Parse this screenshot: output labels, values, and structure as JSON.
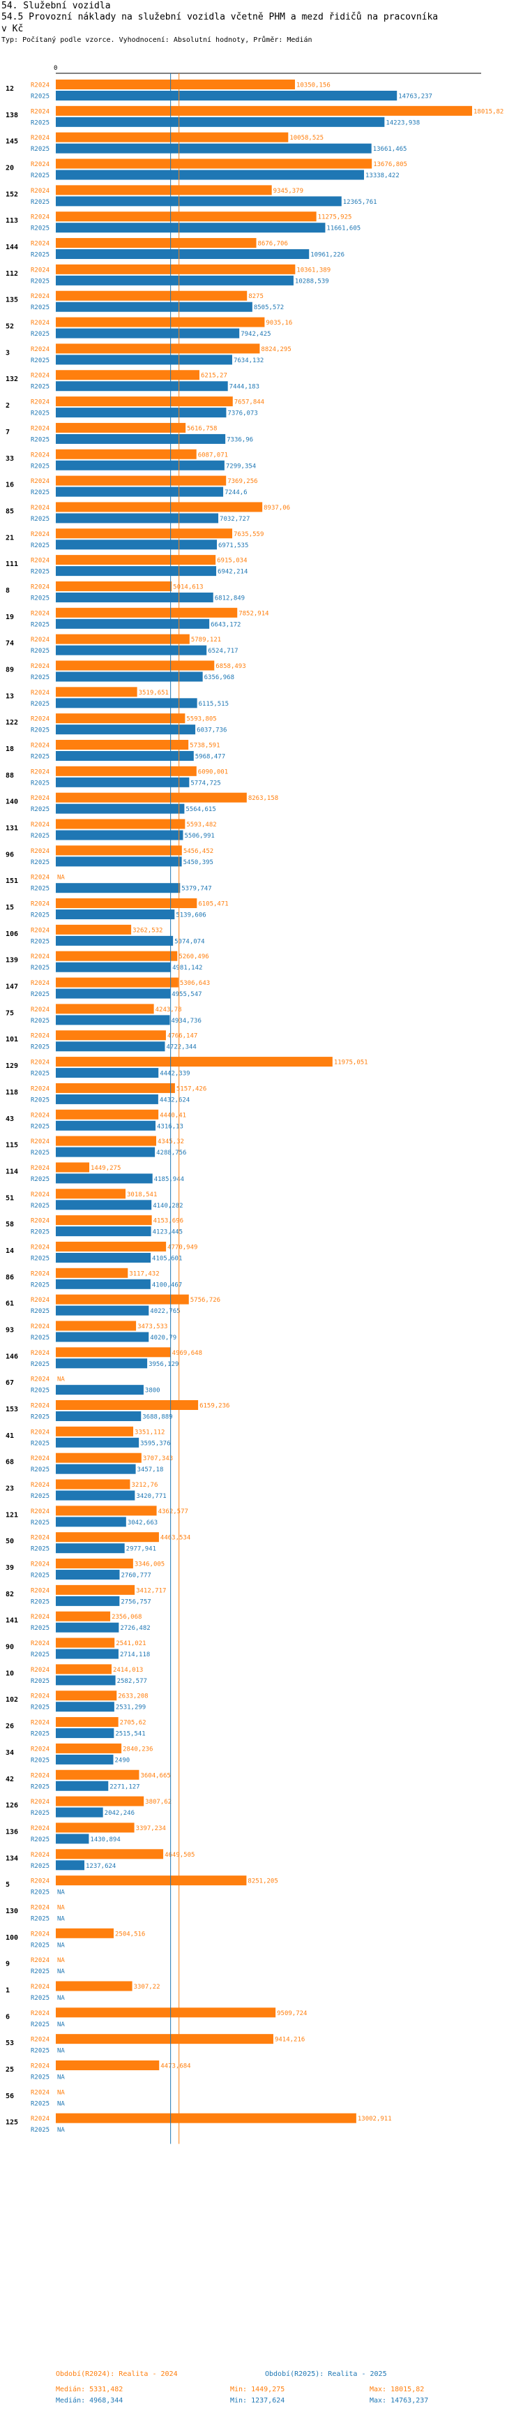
{
  "header": {
    "title_line1": "54. Služební vozidla",
    "title_line2": "54.5 Provozní náklady na služební vozidla včetně PHM a mezd řidičů na pracovníka",
    "title_line3": "v Kč",
    "subtitle": "Typ: Počítaný podle vzorce. Vyhodnocení: Absolutní hodnoty, Průměr: Medián"
  },
  "colors": {
    "r2024": "#ff7f0e",
    "r2025": "#1f77b4",
    "median2024": "#ff7f0e",
    "median2025": "#1f77b4"
  },
  "chart_data": {
    "type": "bar",
    "orientation": "horizontal",
    "axis_zero_label": "0",
    "x_range": [
      0,
      18500
    ],
    "series_names": [
      "R2024",
      "R2025"
    ],
    "missing_label": "NA",
    "groups": [
      {
        "id": "12",
        "r2024": 10350.156,
        "r2025": 14763.237,
        "l2024": "10350,156",
        "l2025": "14763,237"
      },
      {
        "id": "138",
        "r2024": 18015.82,
        "r2025": 14223.938,
        "l2024": "18015,82",
        "l2025": "14223,938"
      },
      {
        "id": "145",
        "r2024": 10058.525,
        "r2025": 13661.465,
        "l2024": "10058,525",
        "l2025": "13661,465"
      },
      {
        "id": "20",
        "r2024": 13676.805,
        "r2025": 13338.422,
        "l2024": "13676,805",
        "l2025": "13338,422"
      },
      {
        "id": "152",
        "r2024": 9345.379,
        "r2025": 12365.761,
        "l2024": "9345,379",
        "l2025": "12365,761"
      },
      {
        "id": "113",
        "r2024": 11275.925,
        "r2025": 11661.605,
        "l2024": "11275,925",
        "l2025": "11661,605"
      },
      {
        "id": "144",
        "r2024": 8676.706,
        "r2025": 10961.226,
        "l2024": "8676,706",
        "l2025": "10961,226"
      },
      {
        "id": "112",
        "r2024": 10361.389,
        "r2025": 10288.539,
        "l2024": "10361,389",
        "l2025": "10288,539"
      },
      {
        "id": "135",
        "r2024": 8275,
        "r2025": 8505.572,
        "l2024": "8275",
        "l2025": "8505,572"
      },
      {
        "id": "52",
        "r2024": 9035.16,
        "r2025": 7942.425,
        "l2024": "9035,16",
        "l2025": "7942,425"
      },
      {
        "id": "3",
        "r2024": 8824.295,
        "r2025": 7634.132,
        "l2024": "8824,295",
        "l2025": "7634,132"
      },
      {
        "id": "132",
        "r2024": 6215.27,
        "r2025": 7444.183,
        "l2024": "6215,27",
        "l2025": "7444,183"
      },
      {
        "id": "2",
        "r2024": 7657.844,
        "r2025": 7376.073,
        "l2024": "7657,844",
        "l2025": "7376,073"
      },
      {
        "id": "7",
        "r2024": 5616.758,
        "r2025": 7336.96,
        "l2024": "5616,758",
        "l2025": "7336,96"
      },
      {
        "id": "33",
        "r2024": 6087.071,
        "r2025": 7299.354,
        "l2024": "6087,071",
        "l2025": "7299,354"
      },
      {
        "id": "16",
        "r2024": 7369.256,
        "r2025": 7244.6,
        "l2024": "7369,256",
        "l2025": "7244,6"
      },
      {
        "id": "85",
        "r2024": 8937.06,
        "r2025": 7032.727,
        "l2024": "8937,06",
        "l2025": "7032,727"
      },
      {
        "id": "21",
        "r2024": 7635.559,
        "r2025": 6971.535,
        "l2024": "7635,559",
        "l2025": "6971,535"
      },
      {
        "id": "111",
        "r2024": 6915.034,
        "r2025": 6942.214,
        "l2024": "6915,034",
        "l2025": "6942,214"
      },
      {
        "id": "8",
        "r2024": 5014.613,
        "r2025": 6812.849,
        "l2024": "5014,613",
        "l2025": "6812,849"
      },
      {
        "id": "19",
        "r2024": 7852.914,
        "r2025": 6643.172,
        "l2024": "7852,914",
        "l2025": "6643,172"
      },
      {
        "id": "74",
        "r2024": 5789.121,
        "r2025": 6524.717,
        "l2024": "5789,121",
        "l2025": "6524,717"
      },
      {
        "id": "89",
        "r2024": 6858.493,
        "r2025": 6356.968,
        "l2024": "6858,493",
        "l2025": "6356,968"
      },
      {
        "id": "13",
        "r2024": 3519.651,
        "r2025": 6115.515,
        "l2024": "3519,651",
        "l2025": "6115,515"
      },
      {
        "id": "122",
        "r2024": 5593.805,
        "r2025": 6037.736,
        "l2024": "5593,805",
        "l2025": "6037,736"
      },
      {
        "id": "18",
        "r2024": 5738.591,
        "r2025": 5968.477,
        "l2024": "5738,591",
        "l2025": "5968,477"
      },
      {
        "id": "88",
        "r2024": 6090.001,
        "r2025": 5774.725,
        "l2024": "6090,001",
        "l2025": "5774,725"
      },
      {
        "id": "140",
        "r2024": 8263.158,
        "r2025": 5564.615,
        "l2024": "8263,158",
        "l2025": "5564,615"
      },
      {
        "id": "131",
        "r2024": 5593.482,
        "r2025": 5506.991,
        "l2024": "5593,482",
        "l2025": "5506,991"
      },
      {
        "id": "96",
        "r2024": 5456.452,
        "r2025": 5450.395,
        "l2024": "5456,452",
        "l2025": "5450,395"
      },
      {
        "id": "151",
        "r2024": null,
        "r2025": 5379.747,
        "l2024": "NA",
        "l2025": "5379,747"
      },
      {
        "id": "15",
        "r2024": 6105.471,
        "r2025": 5139.606,
        "l2024": "6105,471",
        "l2025": "5139,606"
      },
      {
        "id": "106",
        "r2024": 3262.532,
        "r2025": 5074.074,
        "l2024": "3262,532",
        "l2025": "5074,074"
      },
      {
        "id": "139",
        "r2024": 5260.496,
        "r2025": 4981.142,
        "l2024": "5260,496",
        "l2025": "4981,142"
      },
      {
        "id": "147",
        "r2024": 5306.643,
        "r2025": 4955.547,
        "l2024": "5306,643",
        "l2025": "4955,547"
      },
      {
        "id": "75",
        "r2024": 4243.78,
        "r2025": 4934.736,
        "l2024": "4243,78",
        "l2025": "4934,736"
      },
      {
        "id": "101",
        "r2024": 4766.147,
        "r2025": 4722.344,
        "l2024": "4766,147",
        "l2025": "4722,344"
      },
      {
        "id": "129",
        "r2024": 11975.051,
        "r2025": 4442.339,
        "l2024": "11975,051",
        "l2025": "4442,339"
      },
      {
        "id": "118",
        "r2024": 5157.426,
        "r2025": 4432.624,
        "l2024": "5157,426",
        "l2025": "4432,624"
      },
      {
        "id": "43",
        "r2024": 4440.41,
        "r2025": 4316.13,
        "l2024": "4440,41",
        "l2025": "4316,13"
      },
      {
        "id": "115",
        "r2024": 4345.32,
        "r2025": 4288.756,
        "l2024": "4345,32",
        "l2025": "4288,756"
      },
      {
        "id": "114",
        "r2024": 1449.275,
        "r2025": 4185.944,
        "l2024": "1449,275",
        "l2025": "4185,944"
      },
      {
        "id": "51",
        "r2024": 3018.541,
        "r2025": 4140.282,
        "l2024": "3018,541",
        "l2025": "4140,282"
      },
      {
        "id": "58",
        "r2024": 4153.696,
        "r2025": 4123.445,
        "l2024": "4153,696",
        "l2025": "4123,445"
      },
      {
        "id": "14",
        "r2024": 4770.949,
        "r2025": 4105.601,
        "l2024": "4770,949",
        "l2025": "4105,601"
      },
      {
        "id": "86",
        "r2024": 3117.432,
        "r2025": 4100.467,
        "l2024": "3117,432",
        "l2025": "4100,467"
      },
      {
        "id": "61",
        "r2024": 5756.726,
        "r2025": 4022.765,
        "l2024": "5756,726",
        "l2025": "4022,765"
      },
      {
        "id": "93",
        "r2024": 3473.533,
        "r2025": 4020.79,
        "l2024": "3473,533",
        "l2025": "4020,79"
      },
      {
        "id": "146",
        "r2024": 4969.648,
        "r2025": 3956.129,
        "l2024": "4969,648",
        "l2025": "3956,129"
      },
      {
        "id": "67",
        "r2024": null,
        "r2025": 3800,
        "l2024": "NA",
        "l2025": "3800"
      },
      {
        "id": "153",
        "r2024": 6159.236,
        "r2025": 3688.889,
        "l2024": "6159,236",
        "l2025": "3688,889"
      },
      {
        "id": "41",
        "r2024": 3351.112,
        "r2025": 3595.376,
        "l2024": "3351,112",
        "l2025": "3595,376"
      },
      {
        "id": "68",
        "r2024": 3707.343,
        "r2025": 3457.18,
        "l2024": "3707,343",
        "l2025": "3457,18"
      },
      {
        "id": "23",
        "r2024": 3212.76,
        "r2025": 3420.771,
        "l2024": "3212,76",
        "l2025": "3420,771"
      },
      {
        "id": "121",
        "r2024": 4362.577,
        "r2025": 3042.663,
        "l2024": "4362,577",
        "l2025": "3042,663"
      },
      {
        "id": "50",
        "r2024": 4463.534,
        "r2025": 2977.941,
        "l2024": "4463,534",
        "l2025": "2977,941"
      },
      {
        "id": "39",
        "r2024": 3346.005,
        "r2025": 2760.777,
        "l2024": "3346,005",
        "l2025": "2760,777"
      },
      {
        "id": "82",
        "r2024": 3412.717,
        "r2025": 2756.757,
        "l2024": "3412,717",
        "l2025": "2756,757"
      },
      {
        "id": "141",
        "r2024": 2356.068,
        "r2025": 2726.482,
        "l2024": "2356,068",
        "l2025": "2726,482"
      },
      {
        "id": "90",
        "r2024": 2541.021,
        "r2025": 2714.118,
        "l2024": "2541,021",
        "l2025": "2714,118"
      },
      {
        "id": "10",
        "r2024": 2414.013,
        "r2025": 2582.577,
        "l2024": "2414,013",
        "l2025": "2582,577"
      },
      {
        "id": "102",
        "r2024": 2633.208,
        "r2025": 2531.299,
        "l2024": "2633,208",
        "l2025": "2531,299"
      },
      {
        "id": "26",
        "r2024": 2705.62,
        "r2025": 2515.541,
        "l2024": "2705,62",
        "l2025": "2515,541"
      },
      {
        "id": "34",
        "r2024": 2840.236,
        "r2025": 2490,
        "l2024": "2840,236",
        "l2025": "2490"
      },
      {
        "id": "42",
        "r2024": 3604.665,
        "r2025": 2271.127,
        "l2024": "3604,665",
        "l2025": "2271,127"
      },
      {
        "id": "126",
        "r2024": 3807.62,
        "r2025": 2042.246,
        "l2024": "3807,62",
        "l2025": "2042,246"
      },
      {
        "id": "136",
        "r2024": 3397.234,
        "r2025": 1430.894,
        "l2024": "3397,234",
        "l2025": "1430,894"
      },
      {
        "id": "134",
        "r2024": 4649.505,
        "r2025": 1237.624,
        "l2024": "4649,505",
        "l2025": "1237,624"
      },
      {
        "id": "5",
        "r2024": 8251.205,
        "r2025": null,
        "l2024": "8251,205",
        "l2025": "NA"
      },
      {
        "id": "130",
        "r2024": null,
        "r2025": null,
        "l2024": "NA",
        "l2025": "NA"
      },
      {
        "id": "100",
        "r2024": 2504.516,
        "r2025": null,
        "l2024": "2504,516",
        "l2025": "NA"
      },
      {
        "id": "9",
        "r2024": null,
        "r2025": null,
        "l2024": "NA",
        "l2025": "NA"
      },
      {
        "id": "1",
        "r2024": 3307.22,
        "r2025": null,
        "l2024": "3307,22",
        "l2025": "NA"
      },
      {
        "id": "6",
        "r2024": 9509.724,
        "r2025": null,
        "l2024": "9509,724",
        "l2025": "NA"
      },
      {
        "id": "53",
        "r2024": 9414.216,
        "r2025": null,
        "l2024": "9414,216",
        "l2025": "NA"
      },
      {
        "id": "25",
        "r2024": 4473.684,
        "r2025": null,
        "l2024": "4473,684",
        "l2025": "NA"
      },
      {
        "id": "56",
        "r2024": null,
        "r2025": null,
        "l2024": "NA",
        "l2025": "NA"
      },
      {
        "id": "125",
        "r2024": 13002.911,
        "r2025": null,
        "l2024": "13002,911",
        "l2025": "NA"
      }
    ],
    "medians": {
      "r2024": 5331.482,
      "r2025": 4968.344
    },
    "summary": {
      "r2024": {
        "label": "Období(R2024): Realita - 2024",
        "median": "Medián: 5331,482",
        "min": "Min: 1449,275",
        "max": "Max: 18015,82"
      },
      "r2025": {
        "label": "Období(R2025): Realita - 2025",
        "median": "Medián: 4968,344",
        "min": "Min: 1237,624",
        "max": "Max: 14763,237"
      }
    }
  }
}
